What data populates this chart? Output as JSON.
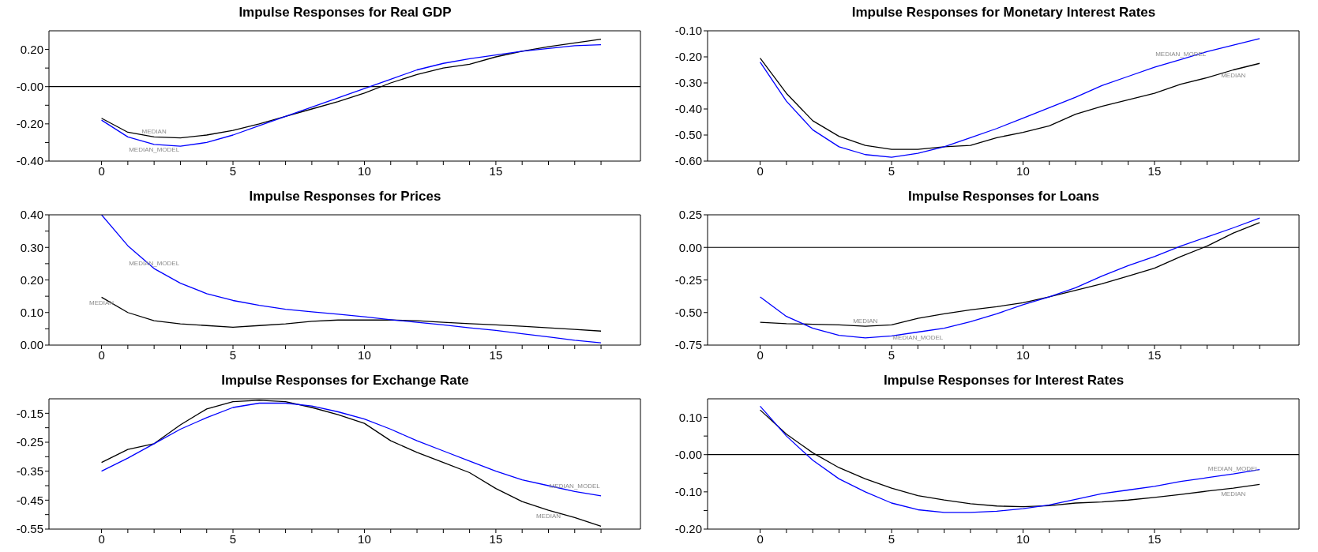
{
  "chart_data": [
    {
      "type": "line",
      "title": "Impulse Responses for Real GDP",
      "x": [
        0,
        1,
        2,
        3,
        4,
        5,
        6,
        7,
        8,
        9,
        10,
        11,
        12,
        13,
        14,
        15,
        16,
        17,
        18,
        19
      ],
      "xlim": [
        -2,
        20.5
      ],
      "xticks": [
        0,
        {
          "value": 1,
          "label": null
        },
        {
          "value": 2,
          "label": null
        },
        {
          "value": 3,
          "label": null
        },
        {
          "value": 4,
          "label": null
        },
        5,
        {
          "value": 6,
          "label": null
        },
        {
          "value": 7,
          "label": null
        },
        {
          "value": 8,
          "label": null
        },
        {
          "value": 9,
          "label": null
        },
        10,
        {
          "value": 11,
          "label": null
        },
        {
          "value": 12,
          "label": null
        },
        {
          "value": 13,
          "label": null
        },
        {
          "value": 14,
          "label": null
        },
        15,
        {
          "value": 16,
          "label": null
        },
        {
          "value": 17,
          "label": null
        },
        {
          "value": 18,
          "label": null
        },
        {
          "value": 19,
          "label": null
        }
      ],
      "ylim": [
        -0.4,
        0.3
      ],
      "yticks": [
        {
          "value": -0.4,
          "label": "-0.40"
        },
        {
          "value": -0.3,
          "label": null
        },
        {
          "value": -0.2,
          "label": "-0.20"
        },
        {
          "value": -0.1,
          "label": null
        },
        {
          "value": 0,
          "label": "-0.00"
        },
        {
          "value": 0.1,
          "label": null
        },
        {
          "value": 0.2,
          "label": "0.20"
        }
      ],
      "ref_lines": [
        {
          "axis": "y",
          "value": 0
        }
      ],
      "series": [
        {
          "color": "#000000",
          "values": [
            -0.17,
            -0.245,
            -0.27,
            -0.275,
            -0.26,
            -0.235,
            -0.2,
            -0.16,
            -0.12,
            -0.08,
            -0.035,
            0.02,
            0.065,
            0.1,
            0.12,
            0.16,
            0.19,
            0.215,
            0.235,
            0.255
          ]
        },
        {
          "color": "#0000ff",
          "values": [
            -0.18,
            -0.27,
            -0.31,
            -0.32,
            -0.3,
            -0.26,
            -0.21,
            -0.16,
            -0.11,
            -0.06,
            -0.01,
            0.04,
            0.09,
            0.125,
            0.15,
            0.17,
            0.19,
            0.205,
            0.22,
            0.225
          ]
        }
      ],
      "annotations": [
        {
          "text": "MEDIAN",
          "x": 2,
          "y": -0.27
        },
        {
          "text": "MEDIAN_MODEL",
          "x": 2,
          "y": -0.31
        }
      ]
    },
    {
      "type": "line",
      "title": "Impulse Responses for Monetary Interest Rates",
      "x": [
        0,
        1,
        2,
        3,
        4,
        5,
        6,
        7,
        8,
        9,
        10,
        11,
        12,
        13,
        14,
        15,
        16,
        17,
        18,
        19
      ],
      "xlim": [
        -2,
        20.5
      ],
      "xticks": [
        0,
        {
          "value": 1,
          "label": null
        },
        {
          "value": 2,
          "label": null
        },
        {
          "value": 3,
          "label": null
        },
        {
          "value": 4,
          "label": null
        },
        5,
        {
          "value": 6,
          "label": null
        },
        {
          "value": 7,
          "label": null
        },
        {
          "value": 8,
          "label": null
        },
        {
          "value": 9,
          "label": null
        },
        10,
        {
          "value": 11,
          "label": null
        },
        {
          "value": 12,
          "label": null
        },
        {
          "value": 13,
          "label": null
        },
        {
          "value": 14,
          "label": null
        },
        15,
        {
          "value": 16,
          "label": null
        },
        {
          "value": 17,
          "label": null
        },
        {
          "value": 18,
          "label": null
        },
        {
          "value": 19,
          "label": null
        }
      ],
      "ylim": [
        -0.6,
        -0.1
      ],
      "yticks": [
        {
          "value": -0.6,
          "label": "-0.60"
        },
        {
          "value": -0.5,
          "label": "-0.50"
        },
        {
          "value": -0.4,
          "label": "-0.40"
        },
        {
          "value": -0.3,
          "label": "-0.30"
        },
        {
          "value": -0.2,
          "label": "-0.20"
        },
        {
          "value": -0.1,
          "label": "-0.10"
        }
      ],
      "series": [
        {
          "color": "#000000",
          "values": [
            -0.205,
            -0.34,
            -0.445,
            -0.505,
            -0.54,
            -0.555,
            -0.555,
            -0.545,
            -0.54,
            -0.51,
            -0.49,
            -0.465,
            -0.42,
            -0.39,
            -0.365,
            -0.34,
            -0.305,
            -0.28,
            -0.25,
            -0.225
          ]
        },
        {
          "color": "#0000ff",
          "values": [
            -0.22,
            -0.37,
            -0.48,
            -0.545,
            -0.575,
            -0.585,
            -0.57,
            -0.545,
            -0.51,
            -0.475,
            -0.435,
            -0.395,
            -0.355,
            -0.31,
            -0.275,
            -0.24,
            -0.21,
            -0.18,
            -0.155,
            -0.13
          ]
        }
      ],
      "annotations": [
        {
          "text": "MEDIAN_MODEL",
          "x": 16,
          "y": -0.21
        },
        {
          "text": "MEDIAN",
          "x": 18,
          "y": -0.25
        }
      ]
    },
    {
      "type": "line",
      "title": "Impulse Responses for Prices",
      "x": [
        0,
        1,
        2,
        3,
        4,
        5,
        6,
        7,
        8,
        9,
        10,
        11,
        12,
        13,
        14,
        15,
        16,
        17,
        18,
        19
      ],
      "xlim": [
        -2,
        20.5
      ],
      "xticks": [
        0,
        {
          "value": 1,
          "label": null
        },
        {
          "value": 2,
          "label": null
        },
        {
          "value": 3,
          "label": null
        },
        {
          "value": 4,
          "label": null
        },
        5,
        {
          "value": 6,
          "label": null
        },
        {
          "value": 7,
          "label": null
        },
        {
          "value": 8,
          "label": null
        },
        {
          "value": 9,
          "label": null
        },
        10,
        {
          "value": 11,
          "label": null
        },
        {
          "value": 12,
          "label": null
        },
        {
          "value": 13,
          "label": null
        },
        {
          "value": 14,
          "label": null
        },
        15,
        {
          "value": 16,
          "label": null
        },
        {
          "value": 17,
          "label": null
        },
        {
          "value": 18,
          "label": null
        },
        {
          "value": 19,
          "label": null
        }
      ],
      "ylim": [
        0,
        0.4
      ],
      "yticks": [
        {
          "value": 0,
          "label": "0.00"
        },
        {
          "value": 0.05,
          "label": null
        },
        {
          "value": 0.1,
          "label": "0.10"
        },
        {
          "value": 0.15,
          "label": null
        },
        {
          "value": 0.2,
          "label": "0.20"
        },
        {
          "value": 0.25,
          "label": null
        },
        {
          "value": 0.3,
          "label": "0.30"
        },
        {
          "value": 0.35,
          "label": null
        },
        {
          "value": 0.4,
          "label": "0.40"
        }
      ],
      "series": [
        {
          "color": "#000000",
          "values": [
            0.147,
            0.1,
            0.075,
            0.065,
            0.06,
            0.055,
            0.06,
            0.065,
            0.073,
            0.077,
            0.077,
            0.077,
            0.075,
            0.07,
            0.066,
            0.062,
            0.058,
            0.053,
            0.048,
            0.043
          ]
        },
        {
          "color": "#0000ff",
          "values": [
            0.4,
            0.305,
            0.235,
            0.19,
            0.158,
            0.137,
            0.122,
            0.11,
            0.102,
            0.095,
            0.087,
            0.078,
            0.07,
            0.062,
            0.053,
            0.045,
            0.035,
            0.025,
            0.015,
            0.007
          ]
        }
      ],
      "annotations": [
        {
          "text": "MEDIAN_MODEL",
          "x": 2,
          "y": 0.235
        },
        {
          "text": "MEDIAN",
          "x": 0,
          "y": 0.147
        }
      ]
    },
    {
      "type": "line",
      "title": "Impulse Responses for Loans",
      "x": [
        0,
        1,
        2,
        3,
        4,
        5,
        6,
        7,
        8,
        9,
        10,
        11,
        12,
        13,
        14,
        15,
        16,
        17,
        18,
        19
      ],
      "xlim": [
        -2,
        20.5
      ],
      "xticks": [
        0,
        {
          "value": 1,
          "label": null
        },
        {
          "value": 2,
          "label": null
        },
        {
          "value": 3,
          "label": null
        },
        {
          "value": 4,
          "label": null
        },
        5,
        {
          "value": 6,
          "label": null
        },
        {
          "value": 7,
          "label": null
        },
        {
          "value": 8,
          "label": null
        },
        {
          "value": 9,
          "label": null
        },
        10,
        {
          "value": 11,
          "label": null
        },
        {
          "value": 12,
          "label": null
        },
        {
          "value": 13,
          "label": null
        },
        {
          "value": 14,
          "label": null
        },
        15,
        {
          "value": 16,
          "label": null
        },
        {
          "value": 17,
          "label": null
        },
        {
          "value": 18,
          "label": null
        },
        {
          "value": 19,
          "label": null
        }
      ],
      "ylim": [
        -0.75,
        0.25
      ],
      "yticks": [
        {
          "value": -0.75,
          "label": "-0.75"
        },
        {
          "value": -0.5,
          "label": "-0.50"
        },
        {
          "value": -0.25,
          "label": "-0.25"
        },
        {
          "value": 0,
          "label": "0.00"
        },
        {
          "value": 0.25,
          "label": "0.25"
        }
      ],
      "ref_lines": [
        {
          "axis": "y",
          "value": 0
        }
      ],
      "series": [
        {
          "color": "#000000",
          "values": [
            -0.575,
            -0.585,
            -0.59,
            -0.595,
            -0.605,
            -0.595,
            -0.545,
            -0.51,
            -0.48,
            -0.455,
            -0.425,
            -0.38,
            -0.33,
            -0.28,
            -0.22,
            -0.16,
            -0.07,
            0.01,
            0.11,
            0.19
          ]
        },
        {
          "color": "#0000ff",
          "values": [
            -0.38,
            -0.53,
            -0.62,
            -0.675,
            -0.695,
            -0.68,
            -0.65,
            -0.62,
            -0.57,
            -0.51,
            -0.44,
            -0.38,
            -0.31,
            -0.22,
            -0.14,
            -0.07,
            0.01,
            0.08,
            0.15,
            0.225
          ]
        }
      ],
      "annotations": [
        {
          "text": "MEDIAN",
          "x": 4,
          "y": -0.605
        },
        {
          "text": "MEDIAN_MODEL",
          "x": 6,
          "y": -0.65
        }
      ]
    },
    {
      "type": "line",
      "title": "Impulse Responses for Exchange Rate",
      "x": [
        0,
        1,
        2,
        3,
        4,
        5,
        6,
        7,
        8,
        9,
        10,
        11,
        12,
        13,
        14,
        15,
        16,
        17,
        18,
        19
      ],
      "xlim": [
        -2,
        20.5
      ],
      "xticks": [
        0,
        {
          "value": 1,
          "label": null
        },
        {
          "value": 2,
          "label": null
        },
        {
          "value": 3,
          "label": null
        },
        {
          "value": 4,
          "label": null
        },
        5,
        {
          "value": 6,
          "label": null
        },
        {
          "value": 7,
          "label": null
        },
        {
          "value": 8,
          "label": null
        },
        {
          "value": 9,
          "label": null
        },
        10,
        {
          "value": 11,
          "label": null
        },
        {
          "value": 12,
          "label": null
        },
        {
          "value": 13,
          "label": null
        },
        {
          "value": 14,
          "label": null
        },
        15,
        {
          "value": 16,
          "label": null
        },
        {
          "value": 17,
          "label": null
        },
        {
          "value": 18,
          "label": null
        },
        {
          "value": 19,
          "label": null
        }
      ],
      "ylim": [
        -0.55,
        -0.1
      ],
      "yticks": [
        {
          "value": -0.55,
          "label": "-0.55"
        },
        {
          "value": -0.5,
          "label": null
        },
        {
          "value": -0.45,
          "label": "-0.45"
        },
        {
          "value": -0.4,
          "label": null
        },
        {
          "value": -0.35,
          "label": "-0.35"
        },
        {
          "value": -0.3,
          "label": null
        },
        {
          "value": -0.25,
          "label": "-0.25"
        },
        {
          "value": -0.2,
          "label": null
        },
        {
          "value": -0.15,
          "label": "-0.15"
        }
      ],
      "series": [
        {
          "color": "#000000",
          "values": [
            -0.32,
            -0.275,
            -0.255,
            -0.19,
            -0.135,
            -0.11,
            -0.105,
            -0.11,
            -0.13,
            -0.155,
            -0.185,
            -0.245,
            -0.285,
            -0.32,
            -0.355,
            -0.41,
            -0.455,
            -0.485,
            -0.51,
            -0.54
          ]
        },
        {
          "color": "#0000ff",
          "values": [
            -0.35,
            -0.305,
            -0.255,
            -0.205,
            -0.165,
            -0.13,
            -0.115,
            -0.115,
            -0.125,
            -0.145,
            -0.17,
            -0.205,
            -0.245,
            -0.28,
            -0.315,
            -0.35,
            -0.38,
            -0.4,
            -0.42,
            -0.435
          ]
        }
      ],
      "annotations": [
        {
          "text": "MEDIAN_MODEL",
          "x": 18,
          "y": -0.42
        },
        {
          "text": "MEDIAN",
          "x": 17,
          "y": -0.485
        }
      ]
    },
    {
      "type": "line",
      "title": "Impulse Responses for Interest Rates",
      "x": [
        0,
        1,
        2,
        3,
        4,
        5,
        6,
        7,
        8,
        9,
        10,
        11,
        12,
        13,
        14,
        15,
        16,
        17,
        18,
        19
      ],
      "xlim": [
        -2,
        20.5
      ],
      "xticks": [
        0,
        {
          "value": 1,
          "label": null
        },
        {
          "value": 2,
          "label": null
        },
        {
          "value": 3,
          "label": null
        },
        {
          "value": 4,
          "label": null
        },
        5,
        {
          "value": 6,
          "label": null
        },
        {
          "value": 7,
          "label": null
        },
        {
          "value": 8,
          "label": null
        },
        {
          "value": 9,
          "label": null
        },
        10,
        {
          "value": 11,
          "label": null
        },
        {
          "value": 12,
          "label": null
        },
        {
          "value": 13,
          "label": null
        },
        {
          "value": 14,
          "label": null
        },
        15,
        {
          "value": 16,
          "label": null
        },
        {
          "value": 17,
          "label": null
        },
        {
          "value": 18,
          "label": null
        },
        {
          "value": 19,
          "label": null
        }
      ],
      "ylim": [
        -0.2,
        0.15
      ],
      "yticks": [
        {
          "value": -0.2,
          "label": "-0.20"
        },
        {
          "value": -0.15,
          "label": null
        },
        {
          "value": -0.1,
          "label": "-0.10"
        },
        {
          "value": -0.05,
          "label": null
        },
        {
          "value": 0,
          "label": "-0.00"
        },
        {
          "value": 0.05,
          "label": null
        },
        {
          "value": 0.1,
          "label": "0.10"
        }
      ],
      "ref_lines": [
        {
          "axis": "y",
          "value": 0
        }
      ],
      "series": [
        {
          "color": "#000000",
          "values": [
            0.12,
            0.055,
            0.005,
            -0.035,
            -0.065,
            -0.09,
            -0.11,
            -0.122,
            -0.132,
            -0.138,
            -0.14,
            -0.137,
            -0.13,
            -0.127,
            -0.122,
            -0.115,
            -0.107,
            -0.098,
            -0.09,
            -0.08
          ]
        },
        {
          "color": "#0000ff",
          "values": [
            0.13,
            0.05,
            -0.015,
            -0.065,
            -0.1,
            -0.13,
            -0.148,
            -0.155,
            -0.155,
            -0.152,
            -0.145,
            -0.135,
            -0.12,
            -0.105,
            -0.095,
            -0.085,
            -0.072,
            -0.062,
            -0.052,
            -0.04
          ]
        }
      ],
      "annotations": [
        {
          "text": "MEDIAN_MODEL",
          "x": 18,
          "y": -0.052
        },
        {
          "text": "MEDIAN",
          "x": 18,
          "y": -0.09
        }
      ]
    }
  ]
}
